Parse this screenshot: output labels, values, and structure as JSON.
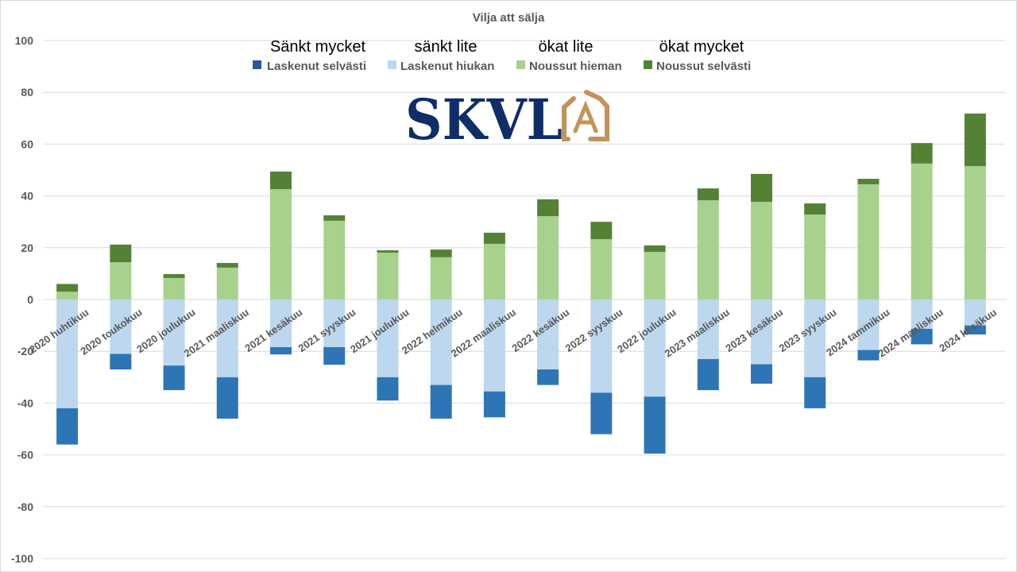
{
  "chart_data": {
    "type": "bar",
    "stacked": true,
    "title": "Vilja att sälja",
    "ylim": [
      -100,
      100
    ],
    "yticks": [
      100,
      80,
      60,
      40,
      20,
      0,
      -20,
      -40,
      -60,
      -80,
      -100
    ],
    "grid": true,
    "legend_position": "top",
    "categories": [
      "2020 huhtikuu",
      "2020 toukokuu",
      "2020 joulukuu",
      "2021 maaliskuu",
      "2021 kesäkuu",
      "2021 syyskuu",
      "2021 joulukuu",
      "2022 helmikuu",
      "2022 maaliskuu",
      "2022 kesäkuu",
      "2022 syyskuu",
      "2022 joulukuu",
      "2023 maaliskuu",
      "2023 kesäkuu",
      "2023 syyskuu",
      "2024 tammikuu",
      "2024 maaliskuu",
      "2024 kesäkuu"
    ],
    "series": [
      {
        "name": "Laskenut selvästi",
        "swedish": "Sänkt mycket",
        "color": "#2e75b6",
        "legend_color": "#2f5597",
        "values": [
          -14,
          -6,
          -9.5,
          -16,
          -2.8,
          -6.8,
          -9,
          -13,
          -10,
          -6,
          -16,
          -22,
          -12,
          -7.5,
          -12,
          -4,
          -6,
          -3.5
        ]
      },
      {
        "name": "Laskenut hiukan",
        "swedish": "sänkt lite",
        "color": "#bdd7ee",
        "values": [
          -42,
          -21,
          -25.5,
          -30,
          -18.4,
          -18.4,
          -30,
          -33,
          -35.5,
          -27,
          -36,
          -37.5,
          -23,
          -25,
          -30,
          -19.5,
          -11.3,
          -10
        ]
      },
      {
        "name": "Noussut hieman",
        "swedish": "ökat lite",
        "color": "#a9d18e",
        "values": [
          3,
          14.4,
          8.3,
          12.3,
          42.6,
          30.4,
          18.1,
          16.3,
          21.5,
          32.2,
          23.3,
          18.4,
          38.3,
          37.7,
          32.8,
          44.5,
          52.5,
          51.5
        ]
      },
      {
        "name": "Noussut selvästi",
        "swedish": "ökat mycket",
        "color": "#548235",
        "values": [
          3,
          6.8,
          1.5,
          1.8,
          6.8,
          2.1,
          0.9,
          3,
          4.3,
          6.5,
          6.7,
          2.5,
          4.6,
          10.8,
          4.3,
          2.1,
          7.9,
          20.3
        ]
      }
    ]
  },
  "logo": {
    "text": "SKVL",
    "badge_letter": "A",
    "text_color": "#0f2d69",
    "badge_color": "#c0955a"
  }
}
